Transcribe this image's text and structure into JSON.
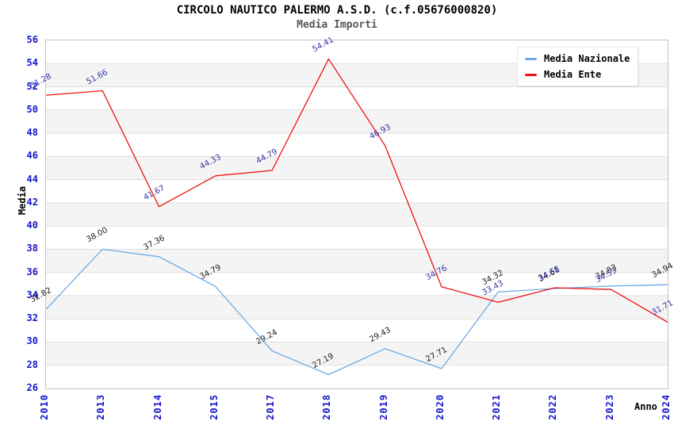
{
  "page": {
    "background": "#ffffff"
  },
  "chart_data": {
    "type": "line",
    "title": "CIRCOLO NAUTICO PALERMO A.S.D. (c.f.05676000820)",
    "subtitle": "Media Importi",
    "xlabel": "Anno",
    "ylabel": "Media",
    "ylim": [
      26,
      56
    ],
    "ytick_step": 2,
    "grid": true,
    "legend_position": "top-right",
    "categories": [
      "2010",
      "2013",
      "2014",
      "2015",
      "2017",
      "2018",
      "2019",
      "2020",
      "2021",
      "2022",
      "2023",
      "2024"
    ],
    "series": [
      {
        "name": "Media Nazionale",
        "color": "#6fabe4",
        "label_color": "#1c1c1c",
        "values": [
          32.82,
          38.0,
          37.36,
          34.79,
          29.24,
          27.19,
          29.43,
          27.71,
          34.32,
          34.61,
          34.83,
          34.94
        ]
      },
      {
        "name": "Media Ente",
        "color": "#ee1212",
        "label_color": "#3434a6",
        "values": [
          51.28,
          51.66,
          41.67,
          44.33,
          44.79,
          54.41,
          46.93,
          34.76,
          33.43,
          34.68,
          34.53,
          31.71
        ]
      }
    ],
    "colors": {
      "tick_label": "#1414cc",
      "grid_line": "#e0e0e0",
      "band": "#f4f4f4",
      "plot_border": "#c4c4c4",
      "title": "#000000",
      "subtitle": "#575757",
      "axis_title": "#000000",
      "legend_bg": "#ffffff",
      "legend_border": "#e6e6e6"
    }
  }
}
